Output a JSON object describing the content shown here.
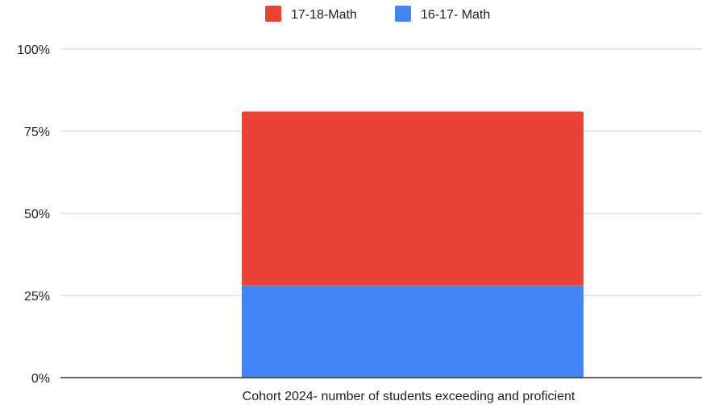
{
  "chart_data": {
    "type": "bar",
    "stacked": true,
    "categories": [
      "Cohort 2024- number of students exceeding and proficient"
    ],
    "series": [
      {
        "name": "16-17- Math",
        "values": [
          28
        ],
        "color": "#4285f4"
      },
      {
        "name": "17-18-Math",
        "values": [
          53
        ],
        "color": "#ea4335"
      }
    ],
    "legend": {
      "position": "top",
      "order": [
        "17-18-Math",
        "16-17- Math"
      ]
    },
    "ylim": [
      0,
      100
    ],
    "yticks": [
      "0%",
      "25%",
      "50%",
      "75%",
      "100%"
    ],
    "ytick_values": [
      0,
      25,
      50,
      75,
      100
    ],
    "grid": true
  }
}
